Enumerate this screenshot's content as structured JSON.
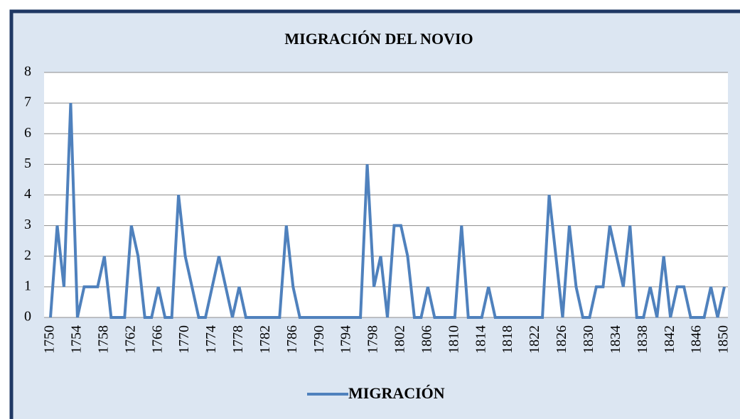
{
  "chart_data": {
    "type": "line",
    "title": "MIGRACIÓN DEL NOVIO",
    "categories": [
      "1750",
      null,
      null,
      null,
      "1754",
      null,
      null,
      null,
      "1758",
      null,
      null,
      null,
      "1762",
      null,
      null,
      null,
      "1766",
      null,
      null,
      null,
      "1770",
      null,
      null,
      null,
      "1774",
      null,
      null,
      null,
      "1778",
      null,
      null,
      null,
      "1782",
      null,
      null,
      null,
      "1786",
      null,
      null,
      null,
      "1790",
      null,
      null,
      null,
      "1794",
      null,
      null,
      null,
      "1798",
      null,
      null,
      null,
      "1802",
      null,
      null,
      null,
      "1806",
      null,
      null,
      null,
      "1810",
      null,
      null,
      null,
      "1814",
      null,
      null,
      null,
      "1818",
      null,
      null,
      null,
      "1822",
      null,
      null,
      null,
      "1826",
      null,
      null,
      null,
      "1830",
      null,
      null,
      null,
      "1834",
      null,
      null,
      null,
      "1838",
      null,
      null,
      null,
      "1842",
      null,
      null,
      null,
      "1846",
      null,
      null,
      null,
      "1850"
    ],
    "series": [
      {
        "name": "MIGRACIÓN",
        "color": "#4f81bd",
        "values": [
          0,
          3,
          1,
          7,
          0,
          1,
          1,
          1,
          2,
          0,
          0,
          0,
          3,
          2,
          0,
          0,
          1,
          0,
          0,
          4,
          2,
          1,
          0,
          0,
          1,
          2,
          1,
          0,
          1,
          0,
          0,
          0,
          0,
          0,
          0,
          3,
          1,
          0,
          0,
          0,
          0,
          0,
          0,
          0,
          0,
          0,
          0,
          5,
          1,
          2,
          0,
          3,
          3,
          2,
          0,
          0,
          1,
          0,
          0,
          0,
          0,
          3,
          0,
          0,
          0,
          1,
          0,
          0,
          0,
          0,
          0,
          0,
          0,
          0,
          4,
          2,
          0,
          3,
          1,
          0,
          0,
          1,
          1,
          3,
          2,
          1,
          3,
          0,
          0,
          1,
          0,
          2,
          0,
          1,
          1,
          0,
          0,
          0,
          1,
          0,
          1
        ]
      }
    ],
    "ylim": [
      0,
      8
    ],
    "yticks": [
      0,
      1,
      2,
      3,
      4,
      5,
      6,
      7,
      8
    ],
    "grid": true,
    "legend": "bottom"
  }
}
